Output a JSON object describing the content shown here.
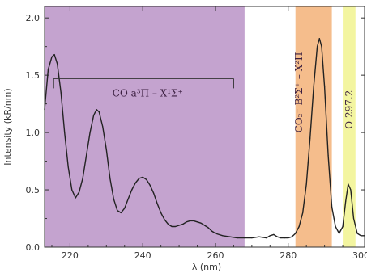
{
  "chart_data": {
    "type": "line",
    "xlabel": "λ (nm)",
    "ylabel": "Intensity (kR/nm)",
    "xlim": [
      213,
      301
    ],
    "ylim": [
      0,
      2.1
    ],
    "x_ticks": [
      220,
      240,
      260,
      280,
      300
    ],
    "y_ticks": [
      0.0,
      0.5,
      1.0,
      1.5,
      2.0
    ],
    "y_tick_labels": [
      "0.0",
      "0.5",
      "1.0",
      "1.5",
      "2.0"
    ],
    "grid": false,
    "colors": {
      "co_band": "#c4a3cf",
      "co2_band": "#f5bd8c",
      "o_band": "#f3f5a0",
      "line": "#222222"
    },
    "shaded_regions": [
      {
        "label": "CO a³Π – X¹Σ⁺",
        "xmin": 213,
        "xmax": 268,
        "color": "#c4a3cf"
      },
      {
        "label": "CO₂⁺ B²Σ⁺ – X²Π",
        "xmin": 282,
        "xmax": 292,
        "color": "#f5bd8c"
      },
      {
        "label": "O 297.2",
        "xmin": 295,
        "xmax": 298.5,
        "color": "#f3f5a0"
      }
    ],
    "annotations": {
      "co_label": "CO a³Π – X¹Σ⁺",
      "co2_label": "CO₂⁺ B²Σ⁺ – X²Π",
      "o_label": "O 297.2",
      "bracket": {
        "x_start": 215.5,
        "x_end": 265,
        "y": 1.47
      }
    },
    "series": [
      {
        "x": [
          213,
          214,
          215,
          215.7,
          216.5,
          217.5,
          218.5,
          219.5,
          220.5,
          221.5,
          222.5,
          223.5,
          224.5,
          225.5,
          226.5,
          227.3,
          228,
          229,
          230,
          231,
          232,
          233,
          234,
          235,
          236,
          237,
          238,
          239,
          240,
          241,
          242,
          243,
          244,
          245,
          246,
          247,
          248,
          249,
          250,
          251,
          252,
          253,
          254,
          255,
          256,
          257,
          258,
          259,
          260,
          262,
          264,
          266,
          268,
          270,
          272,
          274,
          275,
          276,
          277,
          278,
          279,
          280,
          281,
          282,
          283,
          284,
          285,
          286,
          287,
          288,
          288.6,
          289.2,
          290,
          291,
          292,
          293,
          294,
          295,
          295.8,
          296.5,
          297.2,
          298,
          299,
          300,
          301
        ],
        "y": [
          1.2,
          1.55,
          1.66,
          1.68,
          1.6,
          1.35,
          1.0,
          0.7,
          0.5,
          0.43,
          0.48,
          0.6,
          0.8,
          1.0,
          1.15,
          1.2,
          1.18,
          1.05,
          0.85,
          0.6,
          0.42,
          0.32,
          0.3,
          0.34,
          0.42,
          0.5,
          0.56,
          0.6,
          0.61,
          0.59,
          0.54,
          0.47,
          0.38,
          0.3,
          0.24,
          0.2,
          0.18,
          0.18,
          0.19,
          0.2,
          0.22,
          0.23,
          0.23,
          0.22,
          0.21,
          0.19,
          0.17,
          0.14,
          0.12,
          0.1,
          0.09,
          0.08,
          0.08,
          0.08,
          0.09,
          0.08,
          0.1,
          0.11,
          0.09,
          0.08,
          0.08,
          0.08,
          0.09,
          0.12,
          0.18,
          0.3,
          0.55,
          0.95,
          1.4,
          1.75,
          1.82,
          1.75,
          1.4,
          0.8,
          0.35,
          0.18,
          0.12,
          0.18,
          0.4,
          0.55,
          0.5,
          0.25,
          0.12,
          0.1,
          0.1
        ]
      }
    ]
  }
}
